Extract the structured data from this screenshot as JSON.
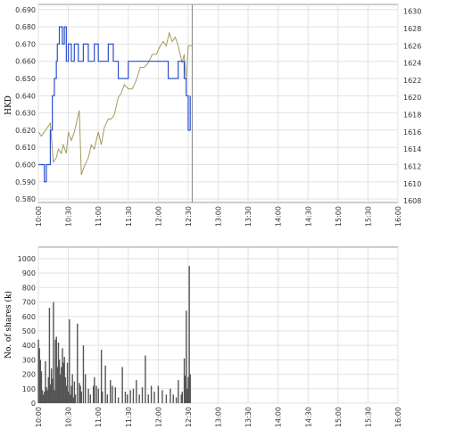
{
  "chart_data": [
    {
      "type": "line",
      "ylabel": "HKD",
      "x_ticks": [
        "10:00",
        "10:30",
        "11:00",
        "11:30",
        "12:00",
        "12:30",
        "13:00",
        "13:30",
        "14:00",
        "14:30",
        "15:00",
        "15:30",
        "16:00"
      ],
      "y_left_ticks": [
        "0.580",
        "0.590",
        "0.600",
        "0.610",
        "0.620",
        "0.630",
        "0.640",
        "0.650",
        "0.660",
        "0.670",
        "0.680",
        "0.690"
      ],
      "y_right_ticks": [
        "1608",
        "1610",
        "1612",
        "1614",
        "1616",
        "1618",
        "1620",
        "1622",
        "1624",
        "1626",
        "1628",
        "1630"
      ],
      "ylim_left": [
        0.578,
        0.693
      ],
      "ylim_right": [
        1607.8,
        1630.8
      ],
      "grid": true,
      "current_time_marker": "12:34",
      "series": [
        {
          "axis": "left",
          "color": "#2b4fcf",
          "x": [
            "10:00",
            "10:05",
            "10:06",
            "10:08",
            "10:12",
            "10:14",
            "10:16",
            "10:18",
            "10:19",
            "10:21",
            "10:24",
            "10:26",
            "10:28",
            "10:30",
            "10:33",
            "10:36",
            "10:40",
            "10:45",
            "10:50",
            "10:53",
            "10:56",
            "11:00",
            "11:05",
            "11:10",
            "11:15",
            "11:20",
            "11:25",
            "11:30",
            "11:40",
            "11:50",
            "12:00",
            "12:05",
            "12:10",
            "12:15",
            "12:20",
            "12:23",
            "12:26",
            "12:28",
            "12:30",
            "12:32"
          ],
          "values": [
            0.6,
            0.6,
            0.59,
            0.6,
            0.62,
            0.64,
            0.65,
            0.66,
            0.67,
            0.68,
            0.67,
            0.68,
            0.66,
            0.67,
            0.66,
            0.67,
            0.66,
            0.67,
            0.66,
            0.66,
            0.67,
            0.66,
            0.66,
            0.67,
            0.66,
            0.65,
            0.65,
            0.66,
            0.66,
            0.66,
            0.66,
            0.66,
            0.65,
            0.65,
            0.66,
            0.66,
            0.65,
            0.64,
            0.62,
            0.64
          ]
        },
        {
          "axis": "right",
          "color": "#a59a5f",
          "x": [
            "10:00",
            "10:03",
            "10:06",
            "10:09",
            "10:12",
            "10:15",
            "10:18",
            "10:20",
            "10:23",
            "10:25",
            "10:28",
            "10:30",
            "10:33",
            "10:36",
            "10:39",
            "10:41",
            "10:43",
            "10:46",
            "10:50",
            "10:53",
            "10:56",
            "11:00",
            "11:03",
            "11:06",
            "11:10",
            "11:13",
            "11:16",
            "11:20",
            "11:23",
            "11:26",
            "11:30",
            "11:34",
            "11:38",
            "11:42",
            "11:46",
            "11:50",
            "11:54",
            "11:58",
            "12:02",
            "12:05",
            "12:08",
            "12:11",
            "12:14",
            "12:17",
            "12:20",
            "12:22",
            "12:24",
            "12:26",
            "12:28",
            "12:30",
            "12:32",
            "12:34"
          ],
          "values": [
            1616,
            1615.5,
            1616,
            1616.5,
            1617,
            1612.5,
            1613,
            1614,
            1613.5,
            1614.5,
            1613.5,
            1616,
            1615,
            1616,
            1617.5,
            1618.5,
            1611,
            1612,
            1613,
            1614.5,
            1614,
            1616,
            1614.5,
            1616.5,
            1617.5,
            1617.5,
            1618,
            1620,
            1620.5,
            1621.5,
            1621,
            1621,
            1622,
            1623.5,
            1623.5,
            1624,
            1625,
            1625,
            1626,
            1626.5,
            1626,
            1627.5,
            1626.5,
            1627,
            1626,
            1625,
            1624,
            1625,
            1622,
            1626,
            1626,
            1626
          ]
        }
      ]
    },
    {
      "type": "bar",
      "ylabel": "No. of shares (k)",
      "x_ticks": [
        "10:00",
        "10:30",
        "11:00",
        "11:30",
        "12:00",
        "12:30",
        "13:00",
        "13:30",
        "14:00",
        "14:30",
        "15:00",
        "15:30",
        "16:00"
      ],
      "y_ticks": [
        "0",
        "100",
        "200",
        "300",
        "400",
        "500",
        "600",
        "700",
        "800",
        "900",
        "1000"
      ],
      "ylim": [
        0,
        1080
      ],
      "grid": true,
      "color": "#555555",
      "x": [
        "10:00",
        "10:01",
        "10:02",
        "10:03",
        "10:04",
        "10:05",
        "10:06",
        "10:07",
        "10:08",
        "10:09",
        "10:10",
        "10:11",
        "10:12",
        "10:13",
        "10:14",
        "10:15",
        "10:16",
        "10:17",
        "10:18",
        "10:19",
        "10:20",
        "10:21",
        "10:22",
        "10:23",
        "10:24",
        "10:25",
        "10:26",
        "10:27",
        "10:28",
        "10:29",
        "10:30",
        "10:31",
        "10:32",
        "10:33",
        "10:34",
        "10:35",
        "10:36",
        "10:37",
        "10:39",
        "10:41",
        "10:42",
        "10:43",
        "10:45",
        "10:47",
        "10:50",
        "10:52",
        "10:55",
        "10:56",
        "10:58",
        "11:00",
        "11:03",
        "11:04",
        "11:07",
        "11:09",
        "11:12",
        "11:14",
        "11:17",
        "11:20",
        "11:24",
        "11:27",
        "11:29",
        "11:32",
        "11:35",
        "11:38",
        "11:41",
        "11:44",
        "11:47",
        "11:50",
        "11:53",
        "11:56",
        "12:00",
        "12:04",
        "12:08",
        "12:12",
        "12:15",
        "12:18",
        "12:20",
        "12:23",
        "12:24",
        "12:26",
        "12:27",
        "12:28",
        "12:29",
        "12:30",
        "12:31",
        "12:32"
      ],
      "values": [
        440,
        380,
        300,
        220,
        90,
        60,
        80,
        290,
        110,
        90,
        180,
        660,
        130,
        240,
        170,
        700,
        90,
        440,
        460,
        250,
        420,
        300,
        200,
        250,
        380,
        280,
        320,
        180,
        120,
        280,
        80,
        580,
        60,
        120,
        200,
        40,
        150,
        60,
        550,
        140,
        120,
        80,
        400,
        200,
        100,
        60,
        120,
        180,
        120,
        100,
        370,
        80,
        260,
        60,
        160,
        120,
        110,
        40,
        250,
        80,
        60,
        90,
        100,
        160,
        60,
        110,
        330,
        60,
        120,
        80,
        120,
        90,
        60,
        100,
        60,
        40,
        160,
        60,
        80,
        310,
        190,
        640,
        100,
        180,
        950,
        200
      ]
    }
  ]
}
